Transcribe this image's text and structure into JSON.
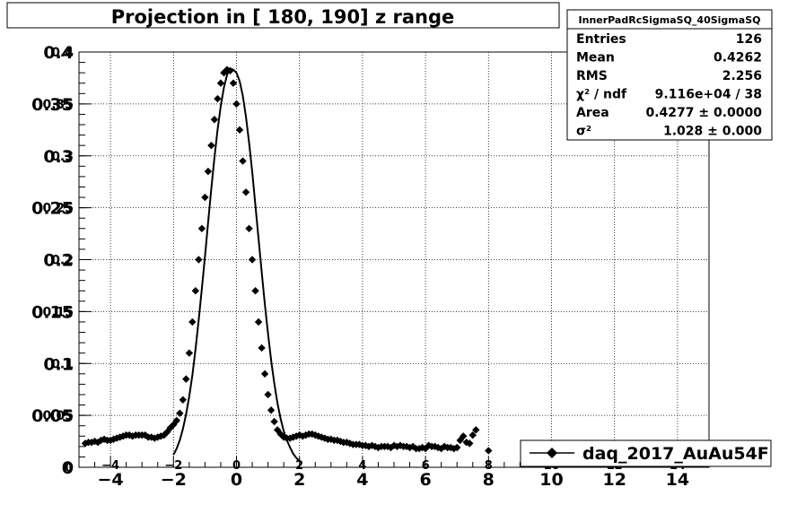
{
  "chart_data": {
    "type": "scatter",
    "title": "Projection in [ 180, 190] z range",
    "xlim": [
      -5,
      15
    ],
    "ylim": [
      0,
      0.4
    ],
    "grid": true,
    "x_ticks_major": [
      -4,
      -2,
      0,
      2,
      4,
      6,
      8,
      10,
      12,
      14
    ],
    "x_ticks_inner": [
      -4,
      -2,
      0,
      2,
      4,
      6,
      8,
      10,
      12,
      14
    ],
    "y_ticks_outer": [
      "0",
      "0.05",
      "0.1",
      "0.15",
      "0.2",
      "0.25",
      "0.3",
      "0.35",
      "0.4"
    ],
    "y_ticks_inner": [
      "0",
      "0.05",
      "0.1",
      "0.15",
      "0.2",
      "0.25",
      "0.3",
      "0.35",
      "0.4"
    ],
    "stats_box": {
      "name": "InnerPadRcSigmaSQ_40SigmaSQ",
      "rows": [
        {
          "label": "Entries",
          "value": "126"
        },
        {
          "label": "Mean",
          "value": "0.4262"
        },
        {
          "label": "RMS",
          "value": "2.256"
        },
        {
          "label": "χ² / ndf",
          "value": "9.116e+04 / 38"
        },
        {
          "label": "Area",
          "value": "0.4277 ± 0.0000"
        },
        {
          "label": "σ²",
          "value": "1.028 ± 0.000"
        }
      ]
    },
    "legend": {
      "entry": "daq_2017_AuAu54F",
      "position": "bottom-right"
    },
    "series": [
      {
        "name": "daq_2017_AuAu54F",
        "kind": "points",
        "x": [
          -4.8,
          -4.7,
          -4.6,
          -4.5,
          -4.4,
          -4.3,
          -4.2,
          -4.1,
          -4.0,
          -3.9,
          -3.8,
          -3.7,
          -3.6,
          -3.5,
          -3.4,
          -3.3,
          -3.2,
          -3.1,
          -3.0,
          -2.9,
          -2.8,
          -2.7,
          -2.6,
          -2.5,
          -2.4,
          -2.3,
          -2.2,
          -2.1,
          -2.0,
          -1.9,
          -1.8,
          -1.7,
          -1.6,
          -1.5,
          -1.4,
          -1.3,
          -1.2,
          -1.1,
          -1.0,
          -0.9,
          -0.8,
          -0.7,
          -0.6,
          -0.5,
          -0.4,
          -0.3,
          -0.2,
          -0.1,
          0.0,
          0.1,
          0.2,
          0.3,
          0.4,
          0.5,
          0.6,
          0.7,
          0.8,
          0.9,
          1.0,
          1.1,
          1.2,
          1.3,
          1.4,
          1.5,
          1.6,
          1.7,
          1.8,
          1.9,
          2.0,
          2.1,
          2.2,
          2.3,
          2.4,
          2.5,
          2.6,
          2.7,
          2.8,
          2.9,
          3.0,
          3.1,
          3.2,
          3.3,
          3.4,
          3.5,
          3.6,
          3.7,
          3.8,
          3.9,
          4.0,
          4.1,
          4.2,
          4.3,
          4.4,
          4.5,
          4.6,
          4.7,
          4.8,
          4.9,
          5.0,
          5.1,
          5.2,
          5.3,
          5.4,
          5.5,
          5.6,
          5.7,
          5.8,
          5.9,
          6.0,
          6.1,
          6.2,
          6.3,
          6.4,
          6.5,
          6.6,
          6.7,
          6.8,
          6.9,
          7.0,
          7.1,
          7.2,
          7.3,
          7.4,
          7.5,
          7.6,
          8.0
        ],
        "y": [
          0.023,
          0.024,
          0.024,
          0.025,
          0.024,
          0.026,
          0.027,
          0.026,
          0.026,
          0.027,
          0.028,
          0.029,
          0.03,
          0.031,
          0.031,
          0.03,
          0.031,
          0.031,
          0.031,
          0.031,
          0.029,
          0.029,
          0.028,
          0.029,
          0.03,
          0.031,
          0.034,
          0.038,
          0.041,
          0.045,
          0.052,
          0.065,
          0.085,
          0.11,
          0.14,
          0.17,
          0.2,
          0.23,
          0.26,
          0.285,
          0.31,
          0.335,
          0.355,
          0.37,
          0.38,
          0.383,
          0.382,
          0.37,
          0.35,
          0.325,
          0.295,
          0.265,
          0.23,
          0.2,
          0.17,
          0.14,
          0.115,
          0.09,
          0.07,
          0.055,
          0.044,
          0.036,
          0.032,
          0.029,
          0.028,
          0.028,
          0.029,
          0.03,
          0.031,
          0.03,
          0.031,
          0.032,
          0.032,
          0.031,
          0.03,
          0.029,
          0.028,
          0.027,
          0.027,
          0.026,
          0.026,
          0.025,
          0.024,
          0.024,
          0.023,
          0.022,
          0.022,
          0.022,
          0.021,
          0.021,
          0.02,
          0.021,
          0.02,
          0.019,
          0.02,
          0.02,
          0.02,
          0.019,
          0.021,
          0.02,
          0.021,
          0.02,
          0.02,
          0.019,
          0.02,
          0.018,
          0.018,
          0.019,
          0.018,
          0.021,
          0.02,
          0.02,
          0.019,
          0.018,
          0.02,
          0.019,
          0.019,
          0.018,
          0.019,
          0.026,
          0.03,
          0.024,
          0.023,
          0.031,
          0.036,
          0.016
        ]
      },
      {
        "name": "",
        "kind": "fit",
        "x": [
          -2.0,
          -1.9,
          -1.8,
          -1.7,
          -1.6,
          -1.5,
          -1.4,
          -1.3,
          -1.2,
          -1.1,
          -1.0,
          -0.9,
          -0.8,
          -0.7,
          -0.6,
          -0.5,
          -0.4,
          -0.3,
          -0.2,
          -0.1,
          0.0,
          0.1,
          0.2,
          0.3,
          0.4,
          0.5,
          0.6,
          0.7,
          0.8,
          0.9,
          1.0,
          1.1,
          1.2,
          1.3,
          1.4,
          1.5,
          1.6,
          1.7,
          1.8,
          1.9,
          2.0
        ],
        "y": [
          0.012,
          0.018,
          0.026,
          0.037,
          0.051,
          0.068,
          0.089,
          0.114,
          0.142,
          0.172,
          0.203,
          0.236,
          0.268,
          0.298,
          0.325,
          0.348,
          0.366,
          0.378,
          0.384,
          0.383,
          0.38,
          0.372,
          0.358,
          0.338,
          0.313,
          0.284,
          0.252,
          0.22,
          0.188,
          0.157,
          0.129,
          0.103,
          0.081,
          0.062,
          0.047,
          0.035,
          0.026,
          0.019,
          0.013,
          0.009,
          0.006
        ]
      }
    ]
  }
}
